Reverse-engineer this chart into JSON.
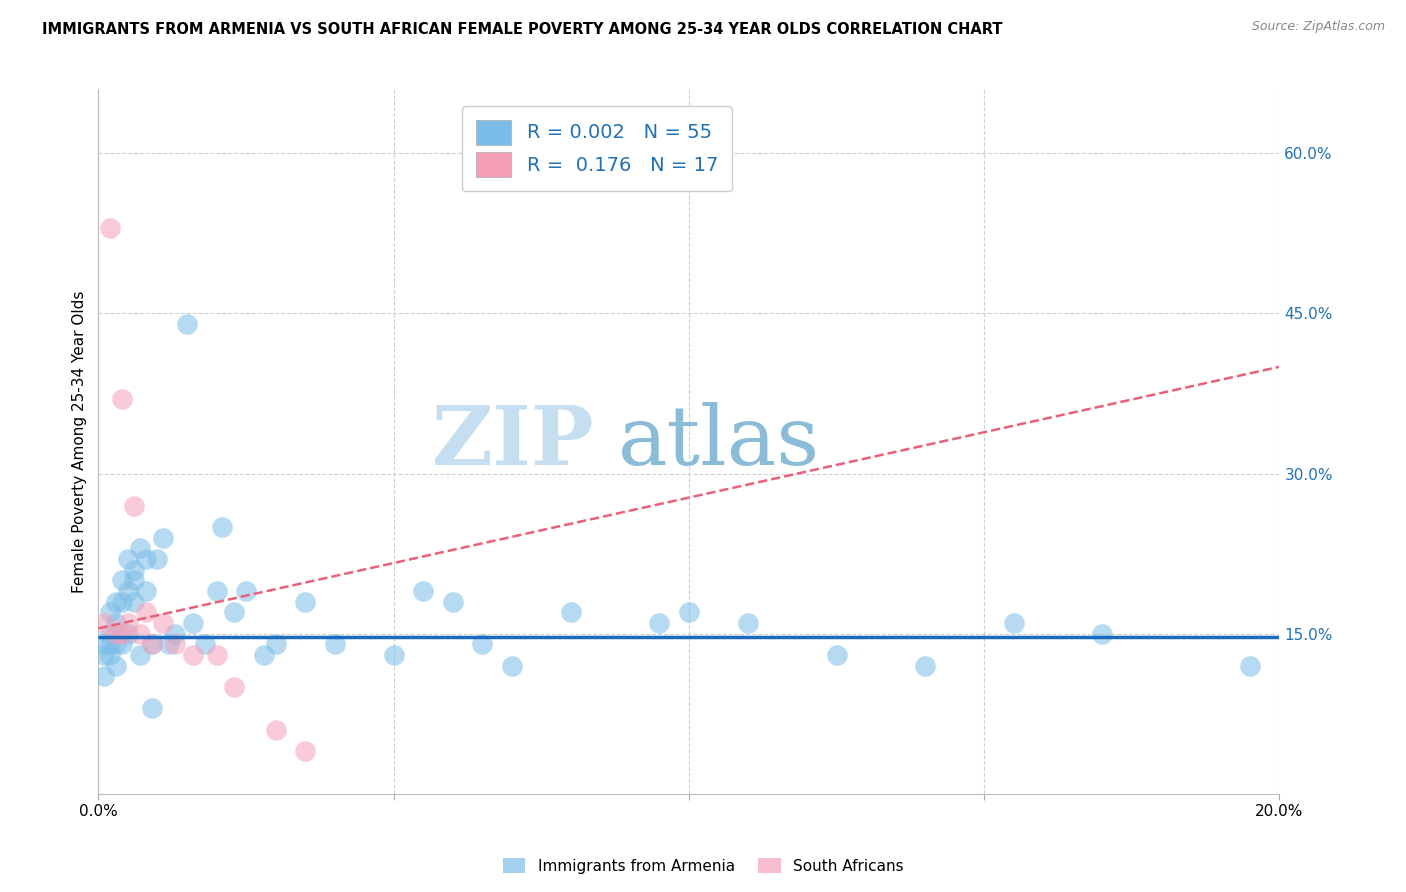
{
  "title": "IMMIGRANTS FROM ARMENIA VS SOUTH AFRICAN FEMALE POVERTY AMONG 25-34 YEAR OLDS CORRELATION CHART",
  "source": "Source: ZipAtlas.com",
  "ylabel": "Female Poverty Among 25-34 Year Olds",
  "xlim": [
    0.0,
    0.2
  ],
  "ylim": [
    0.0,
    0.66
  ],
  "yticks_right": [
    0.6,
    0.45,
    0.3,
    0.15
  ],
  "ytick_right_labels": [
    "60.0%",
    "45.0%",
    "30.0%",
    "15.0%"
  ],
  "blue_color": "#7bbde8",
  "pink_color": "#f5a0b8",
  "trend_blue_color": "#1a6bbf",
  "trend_pink_color": "#e8607a",
  "legend_text_color": "#2171b5",
  "watermark_color": "#cce5f5",
  "watermark_text": "ZIPatlas",
  "blue_R": "0.002",
  "blue_N": "55",
  "pink_R": "0.176",
  "pink_N": "17",
  "blue_x": [
    0.001,
    0.001,
    0.001,
    0.002,
    0.002,
    0.002,
    0.002,
    0.003,
    0.003,
    0.003,
    0.003,
    0.004,
    0.004,
    0.004,
    0.005,
    0.005,
    0.005,
    0.006,
    0.006,
    0.006,
    0.007,
    0.007,
    0.008,
    0.008,
    0.009,
    0.009,
    0.01,
    0.011,
    0.012,
    0.013,
    0.015,
    0.016,
    0.018,
    0.02,
    0.021,
    0.023,
    0.025,
    0.028,
    0.03,
    0.035,
    0.04,
    0.05,
    0.055,
    0.06,
    0.065,
    0.07,
    0.08,
    0.095,
    0.1,
    0.11,
    0.125,
    0.14,
    0.155,
    0.17,
    0.195
  ],
  "blue_y": [
    0.14,
    0.13,
    0.11,
    0.17,
    0.15,
    0.14,
    0.13,
    0.18,
    0.16,
    0.14,
    0.12,
    0.2,
    0.18,
    0.14,
    0.22,
    0.19,
    0.15,
    0.21,
    0.2,
    0.18,
    0.23,
    0.13,
    0.22,
    0.19,
    0.08,
    0.14,
    0.22,
    0.24,
    0.14,
    0.15,
    0.44,
    0.16,
    0.14,
    0.19,
    0.25,
    0.17,
    0.19,
    0.13,
    0.14,
    0.18,
    0.14,
    0.13,
    0.19,
    0.18,
    0.14,
    0.12,
    0.17,
    0.16,
    0.17,
    0.16,
    0.13,
    0.12,
    0.16,
    0.15,
    0.12
  ],
  "pink_x": [
    0.001,
    0.002,
    0.003,
    0.004,
    0.004,
    0.005,
    0.006,
    0.007,
    0.008,
    0.009,
    0.011,
    0.013,
    0.016,
    0.02,
    0.023,
    0.03,
    0.035
  ],
  "pink_y": [
    0.16,
    0.53,
    0.15,
    0.37,
    0.15,
    0.16,
    0.27,
    0.15,
    0.17,
    0.14,
    0.16,
    0.14,
    0.13,
    0.13,
    0.1,
    0.06,
    0.04
  ],
  "legend_label_blue": "Immigrants from Armenia",
  "legend_label_pink": "South Africans",
  "background_color": "#ffffff",
  "grid_color": "#d0d0d0"
}
